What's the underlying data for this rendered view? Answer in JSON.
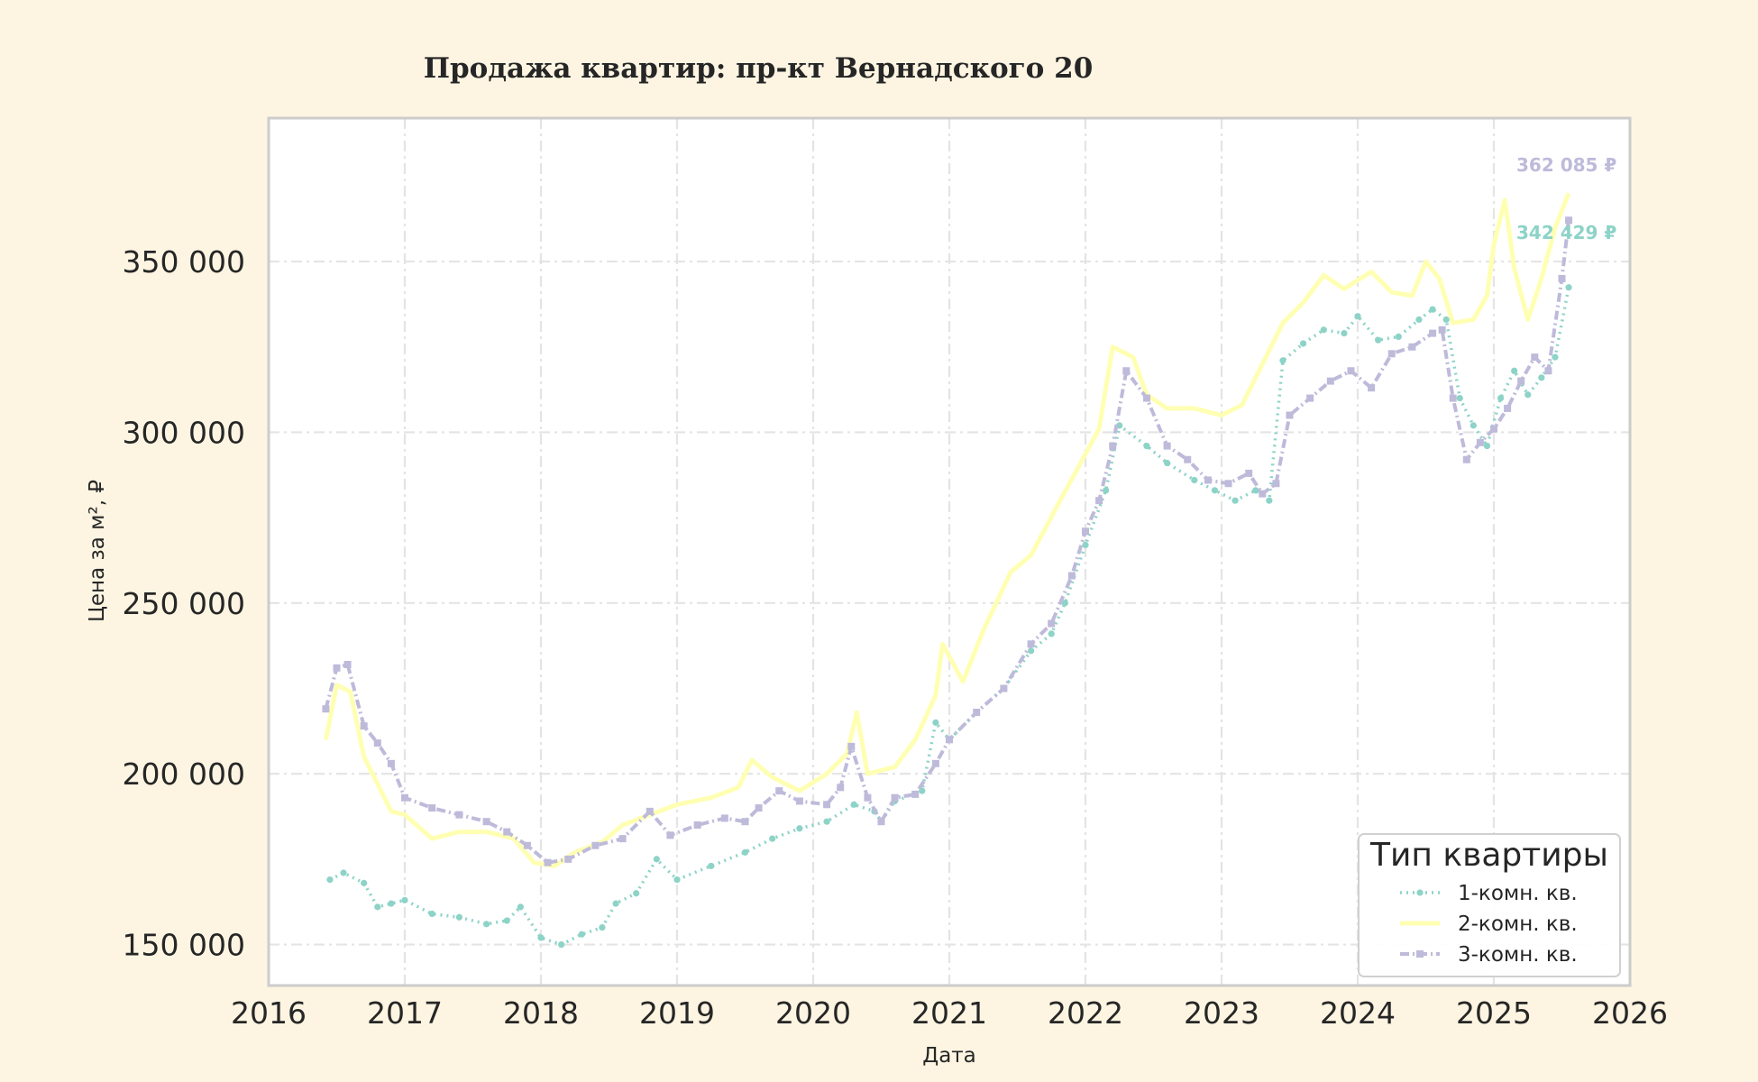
{
  "chart_data": {
    "type": "line",
    "title": "Продажа квартир: пр-кт Вернадского 20",
    "xlabel": "Дата",
    "ylabel": "Цена за м², ₽",
    "xlim": [
      2016,
      2026
    ],
    "ylim": [
      138000,
      392000
    ],
    "x_ticks": [
      2016,
      2017,
      2018,
      2019,
      2020,
      2021,
      2022,
      2023,
      2024,
      2025,
      2026
    ],
    "x_tick_labels": [
      "2016",
      "2017",
      "2018",
      "2019",
      "2020",
      "2021",
      "2022",
      "2023",
      "2024",
      "2025",
      "2026"
    ],
    "y_ticks": [
      150000,
      200000,
      250000,
      300000,
      350000
    ],
    "y_tick_labels": [
      "150 000",
      "200 000",
      "250 000",
      "300 000",
      "350 000"
    ],
    "grid": true,
    "legend": {
      "title": "Тип квартиры",
      "position": "lower-right"
    },
    "series": [
      {
        "name": "1-комн. кв.",
        "color": "#8dd3c7",
        "x": [
          2016.45,
          2016.55,
          2016.7,
          2016.8,
          2016.9,
          2017.0,
          2017.2,
          2017.4,
          2017.6,
          2017.75,
          2017.85,
          2018.0,
          2018.15,
          2018.3,
          2018.45,
          2018.55,
          2018.7,
          2018.85,
          2019.0,
          2019.25,
          2019.5,
          2019.7,
          2019.9,
          2020.1,
          2020.3,
          2020.45,
          2020.5,
          2020.6,
          2020.8,
          2020.9,
          2021.0,
          2021.2,
          2021.4,
          2021.6,
          2021.75,
          2021.85,
          2022.0,
          2022.15,
          2022.25,
          2022.45,
          2022.6,
          2022.8,
          2022.95,
          2023.1,
          2023.25,
          2023.35,
          2023.45,
          2023.6,
          2023.75,
          2023.9,
          2024.0,
          2024.15,
          2024.3,
          2024.45,
          2024.55,
          2024.65,
          2024.75,
          2024.85,
          2024.95,
          2025.05,
          2025.15,
          2025.25,
          2025.35,
          2025.45,
          2025.55
        ],
        "y": [
          169000,
          171000,
          168000,
          161000,
          162000,
          163000,
          159000,
          158000,
          156000,
          157000,
          161000,
          152000,
          150000,
          153000,
          155000,
          162000,
          165000,
          175000,
          169000,
          173000,
          177000,
          181000,
          184000,
          186000,
          191000,
          189000,
          186000,
          192000,
          195000,
          215000,
          210000,
          218000,
          225000,
          236000,
          241000,
          250000,
          267000,
          283000,
          302000,
          296000,
          291000,
          286000,
          283000,
          280000,
          283000,
          280000,
          321000,
          326000,
          330000,
          329000,
          334000,
          327000,
          328000,
          333000,
          336000,
          333000,
          310000,
          302000,
          296000,
          310000,
          318000,
          311000,
          316000,
          322000,
          342429
        ]
      },
      {
        "name": "2-комн. кв.",
        "color": "#ffffb3",
        "x": [
          2016.42,
          2016.5,
          2016.6,
          2016.7,
          2016.8,
          2016.9,
          2017.0,
          2017.2,
          2017.4,
          2017.6,
          2017.8,
          2017.95,
          2018.1,
          2018.25,
          2018.45,
          2018.6,
          2018.8,
          2019.0,
          2019.25,
          2019.45,
          2019.55,
          2019.7,
          2019.9,
          2020.1,
          2020.25,
          2020.32,
          2020.4,
          2020.6,
          2020.75,
          2020.9,
          2020.95,
          2021.1,
          2021.25,
          2021.45,
          2021.6,
          2021.8,
          2021.95,
          2022.1,
          2022.2,
          2022.35,
          2022.45,
          2022.6,
          2022.8,
          2023.0,
          2023.15,
          2023.3,
          2023.45,
          2023.6,
          2023.75,
          2023.9,
          2024.1,
          2024.25,
          2024.4,
          2024.5,
          2024.6,
          2024.7,
          2024.85,
          2024.95,
          2025.0,
          2025.08,
          2025.15,
          2025.25,
          2025.35,
          2025.45,
          2025.55
        ],
        "y": [
          210000,
          226000,
          224000,
          205000,
          197000,
          189000,
          188000,
          181000,
          183000,
          183000,
          181000,
          174000,
          173000,
          177000,
          180000,
          185000,
          188000,
          191000,
          193000,
          196000,
          204000,
          199000,
          195000,
          200000,
          206000,
          218000,
          200000,
          202000,
          210000,
          223000,
          238000,
          227000,
          242000,
          259000,
          264000,
          279000,
          290000,
          301000,
          325000,
          322000,
          311000,
          307000,
          307000,
          305000,
          308000,
          320000,
          332000,
          338000,
          346000,
          342000,
          347000,
          341000,
          340000,
          350000,
          345000,
          332000,
          333000,
          340000,
          355000,
          368000,
          348000,
          333000,
          345000,
          360000,
          370000
        ]
      },
      {
        "name": "3-комн. кв.",
        "color": "#bebada",
        "x": [
          2016.42,
          2016.5,
          2016.58,
          2016.7,
          2016.8,
          2016.9,
          2017.0,
          2017.2,
          2017.4,
          2017.6,
          2017.75,
          2017.9,
          2018.05,
          2018.2,
          2018.4,
          2018.6,
          2018.8,
          2018.95,
          2019.15,
          2019.35,
          2019.5,
          2019.6,
          2019.75,
          2019.9,
          2020.1,
          2020.2,
          2020.28,
          2020.4,
          2020.5,
          2020.6,
          2020.75,
          2020.9,
          2021.0,
          2021.2,
          2021.4,
          2021.6,
          2021.75,
          2021.9,
          2022.0,
          2022.1,
          2022.2,
          2022.3,
          2022.45,
          2022.6,
          2022.75,
          2022.9,
          2023.05,
          2023.2,
          2023.3,
          2023.4,
          2023.5,
          2023.65,
          2023.8,
          2023.95,
          2024.1,
          2024.25,
          2024.4,
          2024.55,
          2024.62,
          2024.7,
          2024.8,
          2024.9,
          2025.0,
          2025.1,
          2025.2,
          2025.3,
          2025.4,
          2025.5,
          2025.55
        ],
        "y": [
          219000,
          231000,
          232000,
          214000,
          209000,
          203000,
          193000,
          190000,
          188000,
          186000,
          183000,
          179000,
          174000,
          175000,
          179000,
          181000,
          189000,
          182000,
          185000,
          187000,
          186000,
          190000,
          195000,
          192000,
          191000,
          196000,
          208000,
          193000,
          186000,
          193000,
          194000,
          203000,
          210000,
          218000,
          225000,
          238000,
          244000,
          258000,
          271000,
          280000,
          296000,
          318000,
          310000,
          296000,
          292000,
          286000,
          285000,
          288000,
          282000,
          285000,
          305000,
          310000,
          315000,
          318000,
          313000,
          323000,
          325000,
          329000,
          330000,
          310000,
          292000,
          297000,
          301000,
          307000,
          315000,
          322000,
          318000,
          345000,
          362085
        ]
      }
    ],
    "end_labels": [
      "342 429 ₽",
      "362 085 ₽"
    ]
  }
}
